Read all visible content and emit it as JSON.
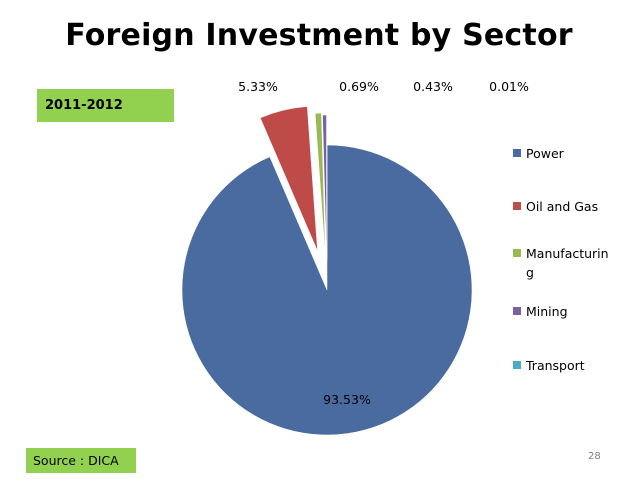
{
  "slide": {
    "title": "Foreign Investment by Sector",
    "year_label": "2011-2012",
    "source_label": "Source : DICA",
    "page_number": "28"
  },
  "chart_data": {
    "type": "pie",
    "title": "Foreign Investment by Sector",
    "categories": [
      "Power",
      "Oil and Gas",
      "Manufacturing",
      "Mining",
      "Transport"
    ],
    "values": [
      93.53,
      5.33,
      0.69,
      0.43,
      0.01
    ],
    "data_labels": [
      "93.53%",
      "5.33%",
      "0.69%",
      "0.43%",
      "0.01%"
    ],
    "legend_labels": [
      "Power",
      "Oil and Gas",
      "Manufacturin\ng",
      "Mining",
      "Transport"
    ],
    "colors": [
      "#4a6b9f",
      "#be4b48",
      "#98b954",
      "#7d5fa0",
      "#4bacc6"
    ],
    "legend_position": "right",
    "exploded": true
  }
}
